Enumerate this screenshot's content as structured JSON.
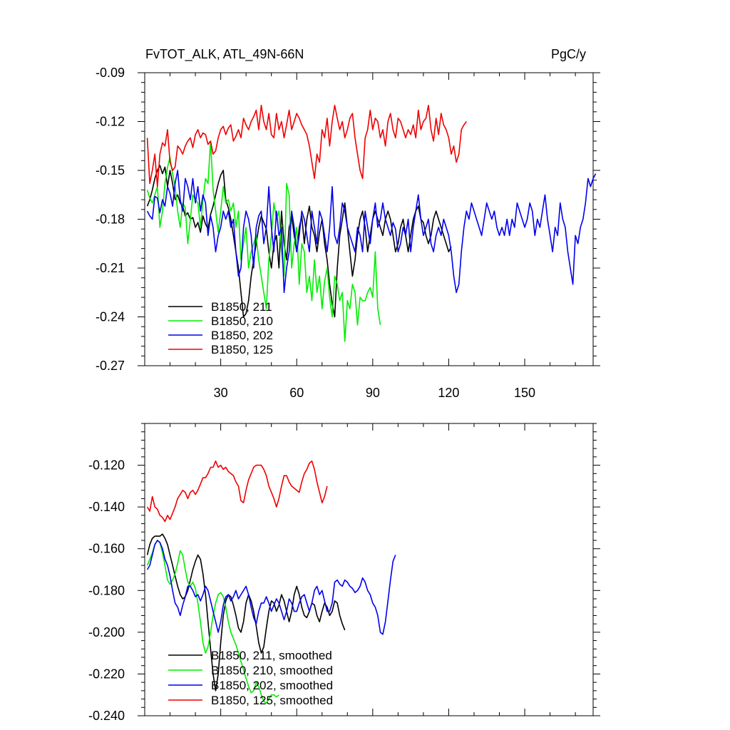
{
  "chart_data": [
    {
      "type": "line",
      "title": "FvTOT_ALK, ATL_49N-66N",
      "units": "PgC/y",
      "xlim": [
        0,
        177
      ],
      "ylim": [
        -0.27,
        -0.09
      ],
      "xticks": [
        30,
        60,
        90,
        120,
        150
      ],
      "yticks": [
        -0.09,
        -0.12,
        -0.15,
        -0.18,
        -0.21,
        -0.24,
        -0.27
      ],
      "ytick_labels": [
        "-0.09",
        "-0.12",
        "-0.15",
        "-0.18",
        "-0.21",
        "-0.24",
        "-0.27"
      ],
      "legend_position": "bottom-left",
      "series": [
        {
          "name": "B1850, 211",
          "color": "#000000",
          "values": [
            -0.172,
            -0.168,
            -0.162,
            -0.155,
            -0.15,
            -0.147,
            -0.152,
            -0.148,
            -0.16,
            -0.15,
            -0.158,
            -0.168,
            -0.165,
            -0.17,
            -0.172,
            -0.178,
            -0.176,
            -0.18,
            -0.179,
            -0.185,
            -0.182,
            -0.188,
            -0.178,
            -0.183,
            -0.186,
            -0.177,
            -0.172,
            -0.165,
            -0.158,
            -0.153,
            -0.15,
            -0.168,
            -0.173,
            -0.18,
            -0.19,
            -0.2,
            -0.21,
            -0.225,
            -0.24,
            -0.238,
            -0.23,
            -0.215,
            -0.205,
            -0.195,
            -0.185,
            -0.178,
            -0.182,
            -0.186,
            -0.2,
            -0.21,
            -0.195,
            -0.19,
            -0.21,
            -0.175,
            -0.195,
            -0.205,
            -0.185,
            -0.178,
            -0.19,
            -0.2,
            -0.185,
            -0.178,
            -0.195,
            -0.18,
            -0.172,
            -0.185,
            -0.19,
            -0.2,
            -0.188,
            -0.18,
            -0.195,
            -0.205,
            -0.22,
            -0.232,
            -0.24,
            -0.21,
            -0.19,
            -0.18,
            -0.17,
            -0.185,
            -0.2,
            -0.215,
            -0.205,
            -0.19,
            -0.18,
            -0.175,
            -0.185,
            -0.2,
            -0.19,
            -0.18,
            -0.175,
            -0.18,
            -0.185,
            -0.19,
            -0.18,
            -0.175,
            -0.18,
            -0.19,
            -0.2,
            -0.195,
            -0.185,
            -0.18,
            -0.19,
            -0.2,
            -0.19,
            -0.18,
            -0.175,
            -0.172,
            -0.18,
            -0.182,
            -0.19,
            -0.195,
            -0.19,
            -0.18,
            -0.175,
            -0.18,
            -0.185,
            -0.19,
            -0.195,
            -0.2,
            -0.197
          ]
        },
        {
          "name": "B1850, 210",
          "color": "#00ee00",
          "values": [
            -0.162,
            -0.167,
            -0.17,
            -0.165,
            -0.16,
            -0.185,
            -0.175,
            -0.158,
            -0.148,
            -0.142,
            -0.152,
            -0.16,
            -0.175,
            -0.185,
            -0.17,
            -0.173,
            -0.195,
            -0.18,
            -0.165,
            -0.168,
            -0.17,
            -0.185,
            -0.168,
            -0.155,
            -0.158,
            -0.132,
            -0.162,
            -0.175,
            -0.188,
            -0.175,
            -0.16,
            -0.17,
            -0.168,
            -0.175,
            -0.17,
            -0.185,
            -0.175,
            -0.205,
            -0.195,
            -0.185,
            -0.21,
            -0.2,
            -0.195,
            -0.19,
            -0.205,
            -0.215,
            -0.225,
            -0.235,
            -0.205,
            -0.19,
            -0.17,
            -0.18,
            -0.175,
            -0.2,
            -0.215,
            -0.158,
            -0.165,
            -0.21,
            -0.195,
            -0.185,
            -0.22,
            -0.195,
            -0.2,
            -0.225,
            -0.215,
            -0.23,
            -0.205,
            -0.225,
            -0.215,
            -0.235,
            -0.218,
            -0.21,
            -0.228,
            -0.24,
            -0.215,
            -0.22,
            -0.23,
            -0.225,
            -0.255,
            -0.23,
            -0.235,
            -0.22,
            -0.225,
            -0.245,
            -0.228,
            -0.23,
            -0.23,
            -0.225,
            -0.222,
            -0.228,
            -0.2,
            -0.235,
            -0.245
          ]
        },
        {
          "name": "B1850, 202",
          "color": "#0000ee",
          "values": [
            -0.175,
            -0.178,
            -0.18,
            -0.166,
            -0.167,
            -0.176,
            -0.168,
            -0.172,
            -0.16,
            -0.164,
            -0.172,
            -0.158,
            -0.15,
            -0.168,
            -0.175,
            -0.155,
            -0.16,
            -0.168,
            -0.155,
            -0.17,
            -0.16,
            -0.175,
            -0.165,
            -0.17,
            -0.19,
            -0.178,
            -0.185,
            -0.2,
            -0.19,
            -0.185,
            -0.175,
            -0.18,
            -0.175,
            -0.185,
            -0.18,
            -0.2,
            -0.215,
            -0.21,
            -0.185,
            -0.175,
            -0.18,
            -0.19,
            -0.21,
            -0.185,
            -0.178,
            -0.175,
            -0.195,
            -0.185,
            -0.16,
            -0.185,
            -0.2,
            -0.175,
            -0.19,
            -0.185,
            -0.225,
            -0.21,
            -0.2,
            -0.175,
            -0.185,
            -0.2,
            -0.19,
            -0.175,
            -0.18,
            -0.19,
            -0.2,
            -0.175,
            -0.185,
            -0.195,
            -0.175,
            -0.18,
            -0.19,
            -0.2,
            -0.185,
            -0.16,
            -0.19,
            -0.195,
            -0.185,
            -0.17,
            -0.175,
            -0.185,
            -0.19,
            -0.195,
            -0.2,
            -0.185,
            -0.19,
            -0.2,
            -0.175,
            -0.185,
            -0.195,
            -0.18,
            -0.17,
            -0.185,
            -0.18,
            -0.17,
            -0.18,
            -0.185,
            -0.19,
            -0.182,
            -0.186,
            -0.2,
            -0.195,
            -0.185,
            -0.19,
            -0.18,
            -0.2,
            -0.185,
            -0.175,
            -0.165,
            -0.18,
            -0.19,
            -0.185,
            -0.18,
            -0.195,
            -0.2,
            -0.19,
            -0.185,
            -0.19,
            -0.18,
            -0.185,
            -0.19,
            -0.2,
            -0.215,
            -0.225,
            -0.22,
            -0.2,
            -0.185,
            -0.175,
            -0.18,
            -0.17,
            -0.175,
            -0.18,
            -0.185,
            -0.19,
            -0.18,
            -0.17,
            -0.175,
            -0.18,
            -0.175,
            -0.185,
            -0.19,
            -0.185,
            -0.19,
            -0.18,
            -0.19,
            -0.18,
            -0.185,
            -0.17,
            -0.175,
            -0.18,
            -0.185,
            -0.18,
            -0.17,
            -0.175,
            -0.19,
            -0.18,
            -0.185,
            -0.175,
            -0.165,
            -0.18,
            -0.19,
            -0.2,
            -0.185,
            -0.19,
            -0.17,
            -0.18,
            -0.185,
            -0.2,
            -0.21,
            -0.22,
            -0.19,
            -0.195,
            -0.185,
            -0.18,
            -0.17,
            -0.155,
            -0.16,
            -0.155,
            -0.152
          ]
        },
        {
          "name": "B1850, 125",
          "color": "#ee0000",
          "values": [
            -0.13,
            -0.158,
            -0.15,
            -0.14,
            -0.16,
            -0.14,
            -0.133,
            -0.135,
            -0.125,
            -0.145,
            -0.15,
            -0.148,
            -0.135,
            -0.137,
            -0.14,
            -0.135,
            -0.132,
            -0.13,
            -0.136,
            -0.128,
            -0.125,
            -0.13,
            -0.127,
            -0.128,
            -0.134,
            -0.132,
            -0.14,
            -0.138,
            -0.13,
            -0.125,
            -0.123,
            -0.128,
            -0.124,
            -0.122,
            -0.132,
            -0.129,
            -0.125,
            -0.13,
            -0.118,
            -0.122,
            -0.125,
            -0.12,
            -0.117,
            -0.113,
            -0.125,
            -0.11,
            -0.12,
            -0.125,
            -0.115,
            -0.128,
            -0.13,
            -0.115,
            -0.125,
            -0.12,
            -0.13,
            -0.122,
            -0.113,
            -0.125,
            -0.12,
            -0.115,
            -0.118,
            -0.122,
            -0.125,
            -0.128,
            -0.135,
            -0.145,
            -0.155,
            -0.14,
            -0.145,
            -0.125,
            -0.13,
            -0.118,
            -0.135,
            -0.12,
            -0.11,
            -0.118,
            -0.125,
            -0.12,
            -0.13,
            -0.125,
            -0.118,
            -0.115,
            -0.13,
            -0.14,
            -0.15,
            -0.155,
            -0.13,
            -0.125,
            -0.113,
            -0.125,
            -0.118,
            -0.12,
            -0.13,
            -0.125,
            -0.135,
            -0.12,
            -0.115,
            -0.125,
            -0.13,
            -0.118,
            -0.12,
            -0.125,
            -0.13,
            -0.125,
            -0.128,
            -0.122,
            -0.13,
            -0.113,
            -0.125,
            -0.12,
            -0.118,
            -0.11,
            -0.125,
            -0.132,
            -0.118,
            -0.128,
            -0.115,
            -0.122,
            -0.125,
            -0.13,
            -0.14,
            -0.135,
            -0.145,
            -0.14,
            -0.125,
            -0.122,
            -0.12
          ]
        }
      ]
    },
    {
      "type": "line",
      "title": "",
      "xlim": [
        0,
        177
      ],
      "ylim": [
        -0.24,
        -0.1
      ],
      "xticks": [
        30,
        60,
        90,
        120,
        150
      ],
      "yticks": [
        -0.12,
        -0.14,
        -0.16,
        -0.18,
        -0.2,
        -0.22,
        -0.24
      ],
      "ytick_labels": [
        "-0.120",
        "-0.140",
        "-0.160",
        "-0.180",
        "-0.200",
        "-0.220",
        "-0.240"
      ],
      "legend_position": "bottom-left",
      "series": [
        {
          "name": "B1850, 211, smoothed",
          "color": "#000000",
          "values": [
            -0.163,
            -0.158,
            -0.155,
            -0.154,
            -0.154,
            -0.154,
            -0.153,
            -0.155,
            -0.158,
            -0.163,
            -0.168,
            -0.173,
            -0.178,
            -0.182,
            -0.184,
            -0.183,
            -0.18,
            -0.175,
            -0.17,
            -0.166,
            -0.163,
            -0.165,
            -0.172,
            -0.182,
            -0.195,
            -0.208,
            -0.22,
            -0.228,
            -0.22,
            -0.205,
            -0.192,
            -0.185,
            -0.182,
            -0.183,
            -0.187,
            -0.192,
            -0.198,
            -0.2,
            -0.195,
            -0.186,
            -0.182,
            -0.185,
            -0.19,
            -0.197,
            -0.205,
            -0.21,
            -0.207,
            -0.198,
            -0.19,
            -0.185,
            -0.186,
            -0.19,
            -0.187,
            -0.182,
            -0.185,
            -0.19,
            -0.195,
            -0.19,
            -0.182,
            -0.178,
            -0.182,
            -0.188,
            -0.192,
            -0.193,
            -0.19,
            -0.186,
            -0.187,
            -0.192,
            -0.195,
            -0.19,
            -0.186,
            -0.188,
            -0.192,
            -0.19,
            -0.185,
            -0.186,
            -0.192,
            -0.196,
            -0.199
          ]
        },
        {
          "name": "B1850, 210, smoothed",
          "color": "#00ee00",
          "values": [
            -0.168,
            -0.165,
            -0.162,
            -0.158,
            -0.156,
            -0.157,
            -0.162,
            -0.168,
            -0.175,
            -0.177,
            -0.175,
            -0.172,
            -0.167,
            -0.161,
            -0.163,
            -0.17,
            -0.176,
            -0.178,
            -0.176,
            -0.179,
            -0.186,
            -0.195,
            -0.205,
            -0.21,
            -0.207,
            -0.2,
            -0.192,
            -0.186,
            -0.182,
            -0.181,
            -0.183,
            -0.188,
            -0.195,
            -0.2,
            -0.203,
            -0.206,
            -0.21,
            -0.214,
            -0.218,
            -0.222,
            -0.226,
            -0.229,
            -0.228,
            -0.224,
            -0.226,
            -0.23,
            -0.233,
            -0.234,
            -0.232,
            -0.23,
            -0.23,
            -0.231,
            -0.23
          ]
        },
        {
          "name": "B1850, 202, smoothed",
          "color": "#0000ee",
          "values": [
            -0.17,
            -0.168,
            -0.163,
            -0.158,
            -0.156,
            -0.157,
            -0.16,
            -0.165,
            -0.168,
            -0.173,
            -0.18,
            -0.186,
            -0.188,
            -0.192,
            -0.187,
            -0.183,
            -0.178,
            -0.178,
            -0.18,
            -0.183,
            -0.182,
            -0.185,
            -0.182,
            -0.178,
            -0.18,
            -0.185,
            -0.19,
            -0.195,
            -0.2,
            -0.195,
            -0.187,
            -0.183,
            -0.182,
            -0.185,
            -0.183,
            -0.18,
            -0.184,
            -0.182,
            -0.18,
            -0.178,
            -0.182,
            -0.188,
            -0.193,
            -0.196,
            -0.19,
            -0.186,
            -0.186,
            -0.183,
            -0.186,
            -0.19,
            -0.187,
            -0.184,
            -0.186,
            -0.19,
            -0.194,
            -0.19,
            -0.184,
            -0.186,
            -0.19,
            -0.19,
            -0.186,
            -0.183,
            -0.182,
            -0.186,
            -0.19,
            -0.186,
            -0.18,
            -0.178,
            -0.182,
            -0.18,
            -0.185,
            -0.19,
            -0.19,
            -0.186,
            -0.176,
            -0.175,
            -0.177,
            -0.178,
            -0.175,
            -0.176,
            -0.178,
            -0.179,
            -0.181,
            -0.18,
            -0.178,
            -0.174,
            -0.176,
            -0.18,
            -0.182,
            -0.186,
            -0.188,
            -0.192,
            -0.2,
            -0.201,
            -0.195,
            -0.185,
            -0.175,
            -0.166,
            -0.163
          ]
        },
        {
          "name": "B1850, 125, smoothed",
          "color": "#ee0000",
          "values": [
            -0.14,
            -0.142,
            -0.135,
            -0.14,
            -0.141,
            -0.144,
            -0.145,
            -0.147,
            -0.144,
            -0.146,
            -0.143,
            -0.14,
            -0.136,
            -0.134,
            -0.132,
            -0.133,
            -0.136,
            -0.133,
            -0.132,
            -0.134,
            -0.132,
            -0.129,
            -0.126,
            -0.126,
            -0.124,
            -0.121,
            -0.121,
            -0.118,
            -0.121,
            -0.12,
            -0.122,
            -0.121,
            -0.123,
            -0.124,
            -0.125,
            -0.128,
            -0.13,
            -0.137,
            -0.138,
            -0.132,
            -0.127,
            -0.124,
            -0.121,
            -0.12,
            -0.12,
            -0.12,
            -0.122,
            -0.125,
            -0.13,
            -0.133,
            -0.136,
            -0.14,
            -0.136,
            -0.13,
            -0.125,
            -0.125,
            -0.128,
            -0.13,
            -0.131,
            -0.132,
            -0.133,
            -0.128,
            -0.124,
            -0.122,
            -0.119,
            -0.118,
            -0.122,
            -0.128,
            -0.133,
            -0.138,
            -0.135,
            -0.13
          ]
        }
      ]
    }
  ]
}
